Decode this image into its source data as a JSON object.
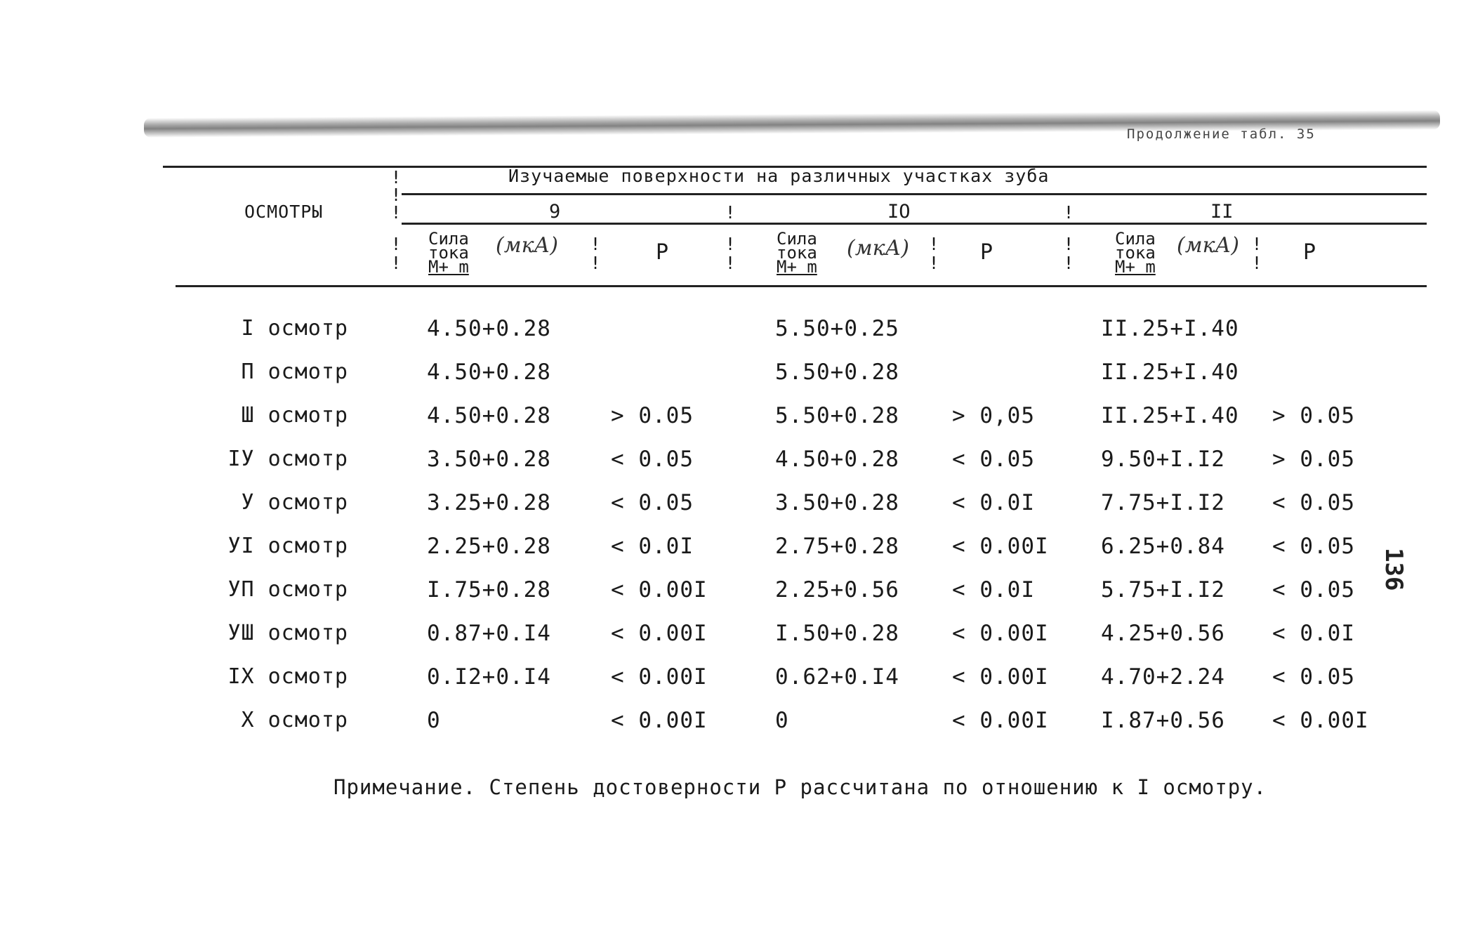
{
  "continuation": "Продолжение табл. 35",
  "header": {
    "row_label": "ОСМОТРЫ",
    "surfaces_title": "Изучаемые поверхности на различных участках зуба",
    "groups": [
      "9",
      "IO",
      "II"
    ],
    "sila_lines": [
      "Сила",
      "тока",
      "М+ m"
    ],
    "unit_note": "(мкА)",
    "p_label": "Р"
  },
  "rows": [
    {
      "label": "I осмотр",
      "values": [
        "4.50+0.28",
        "",
        "5.50+0.25",
        "",
        "II.25+I.40",
        ""
      ]
    },
    {
      "label": "П осмотр",
      "values": [
        "4.50+0.28",
        "",
        "5.50+0.28",
        "",
        "II.25+I.40",
        ""
      ]
    },
    {
      "label": "Ш осмотр",
      "values": [
        "4.50+0.28",
        "> 0.05",
        "5.50+0.28",
        "> 0,05",
        "II.25+I.40",
        "> 0.05"
      ]
    },
    {
      "label": "IУ осмотр",
      "values": [
        "3.50+0.28",
        "< 0.05",
        "4.50+0.28",
        "< 0.05",
        "9.50+I.I2",
        "> 0.05"
      ]
    },
    {
      "label": "У осмотр",
      "values": [
        "3.25+0.28",
        "< 0.05",
        "3.50+0.28",
        "< 0.0I",
        "7.75+I.I2",
        "< 0.05"
      ]
    },
    {
      "label": "УI осмотр",
      "values": [
        "2.25+0.28",
        "< 0.0I",
        "2.75+0.28",
        "< 0.00I",
        "6.25+0.84",
        "< 0.05"
      ]
    },
    {
      "label": "УП осмотр",
      "values": [
        "I.75+0.28",
        "< 0.00I",
        "2.25+0.56",
        "< 0.0I",
        "5.75+I.I2",
        "< 0.05"
      ]
    },
    {
      "label": "УШ осмотр",
      "values": [
        "0.87+0.I4",
        "< 0.00I",
        "I.50+0.28",
        "< 0.00I",
        "4.25+0.56",
        "< 0.0I"
      ]
    },
    {
      "label": "IX осмотр",
      "values": [
        "0.I2+0.I4",
        "< 0.00I",
        "0.62+0.I4",
        "< 0.00I",
        "4.70+2.24",
        "< 0.05"
      ]
    },
    {
      "label": "X осмотр",
      "values": [
        "0",
        "< 0.00I",
        "0",
        "< 0.00I",
        "I.87+0.56",
        "< 0.00I"
      ]
    }
  ],
  "note": "Примечание. Степень достоверности Р рассчитана по отношению к I осмотру.",
  "page_number": "136"
}
